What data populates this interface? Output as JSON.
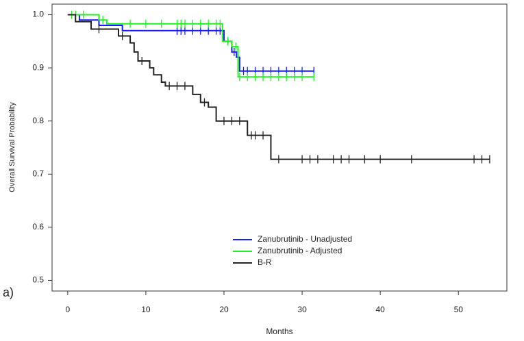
{
  "chart_data": {
    "type": "survival",
    "x_label": "Months",
    "y_label": "Overall Survival Probability",
    "annotation": "a)",
    "xlim": [
      -2,
      56.2
    ],
    "ylim": [
      0.48,
      1.02
    ],
    "xticks": [
      0,
      10,
      20,
      30,
      40,
      50
    ],
    "yticks": [
      {
        "value": 0.5,
        "label": "0.5"
      },
      {
        "value": 0.6,
        "label": "0.6"
      },
      {
        "value": 0.7,
        "label": "0.7"
      },
      {
        "value": 0.8,
        "label": "0.8"
      },
      {
        "value": 0.9,
        "label": "0.9"
      },
      {
        "value": 1,
        "label": "1.0"
      }
    ],
    "series": [
      {
        "name": "Zanubrutinib - Unadjusted",
        "color": "#1a1aff",
        "x": [
          0,
          1.5,
          4,
          7,
          14,
          14.5,
          15,
          16,
          17,
          18,
          19,
          19.5,
          20,
          20.5,
          21,
          21.3,
          21.6,
          22,
          22.5,
          23,
          24,
          25,
          26,
          27,
          28,
          29,
          30,
          31.5
        ],
        "values": [
          1,
          0.99,
          0.98,
          0.97,
          0.97,
          0.97,
          0.97,
          0.97,
          0.97,
          0.97,
          0.97,
          0.97,
          0.95,
          0.95,
          0.93,
          0.93,
          0.92,
          0.894,
          0.894,
          0.894,
          0.894,
          0.894,
          0.894,
          0.894,
          0.894,
          0.894,
          0.894,
          0.894
        ],
        "censored": [
          false,
          false,
          false,
          false,
          true,
          true,
          true,
          true,
          true,
          true,
          true,
          true,
          false,
          true,
          false,
          true,
          false,
          false,
          true,
          true,
          true,
          true,
          true,
          true,
          true,
          true,
          true,
          true
        ]
      },
      {
        "name": "Zanubrutinib - Adjusted",
        "color": "#22ee22",
        "x": [
          0,
          0.5,
          1,
          2,
          4,
          4.5,
          5,
          8,
          10,
          12,
          14,
          14.5,
          15,
          16,
          17,
          18,
          19,
          19.5,
          19.8,
          20.5,
          21,
          21.5,
          21.8,
          22,
          23,
          24,
          25,
          26,
          27,
          28,
          29,
          30,
          31.5
        ],
        "values": [
          1,
          1,
          1,
          1,
          0.99,
          0.99,
          0.983,
          0.983,
          0.983,
          0.983,
          0.983,
          0.983,
          0.983,
          0.983,
          0.983,
          0.983,
          0.983,
          0.983,
          0.95,
          0.95,
          0.94,
          0.94,
          0.883,
          0.883,
          0.883,
          0.883,
          0.883,
          0.883,
          0.883,
          0.883,
          0.883,
          0.883,
          0.883
        ],
        "censored": [
          false,
          true,
          true,
          true,
          false,
          true,
          false,
          true,
          true,
          true,
          true,
          true,
          true,
          true,
          true,
          true,
          true,
          true,
          false,
          true,
          false,
          true,
          false,
          true,
          true,
          true,
          true,
          true,
          true,
          true,
          true,
          true,
          true
        ]
      },
      {
        "name": "B-R",
        "color": "#222222",
        "x": [
          0,
          1,
          3,
          4,
          6.5,
          7,
          8,
          8.5,
          9,
          9.5,
          10.5,
          11,
          12,
          12.5,
          13,
          14,
          15,
          16,
          17,
          17.5,
          18,
          19,
          20,
          21,
          22,
          23,
          23.5,
          24,
          25,
          26,
          27,
          30,
          31,
          32,
          34,
          35,
          36,
          38,
          40,
          44,
          52,
          53,
          54
        ],
        "values": [
          1,
          0.987,
          0.973,
          0.973,
          0.96,
          0.96,
          0.947,
          0.93,
          0.913,
          0.913,
          0.9,
          0.887,
          0.873,
          0.866,
          0.866,
          0.866,
          0.866,
          0.85,
          0.835,
          0.835,
          0.826,
          0.8,
          0.8,
          0.8,
          0.8,
          0.773,
          0.773,
          0.773,
          0.773,
          0.728,
          0.728,
          0.728,
          0.728,
          0.728,
          0.728,
          0.728,
          0.728,
          0.728,
          0.728,
          0.728,
          0.728,
          0.728,
          0.728
        ],
        "censored": [
          false,
          false,
          false,
          true,
          false,
          true,
          false,
          false,
          false,
          true,
          false,
          false,
          false,
          false,
          true,
          true,
          true,
          false,
          false,
          true,
          false,
          false,
          true,
          true,
          true,
          false,
          true,
          true,
          true,
          false,
          true,
          true,
          true,
          true,
          true,
          true,
          true,
          true,
          true,
          true,
          true,
          true,
          true
        ]
      }
    ]
  }
}
